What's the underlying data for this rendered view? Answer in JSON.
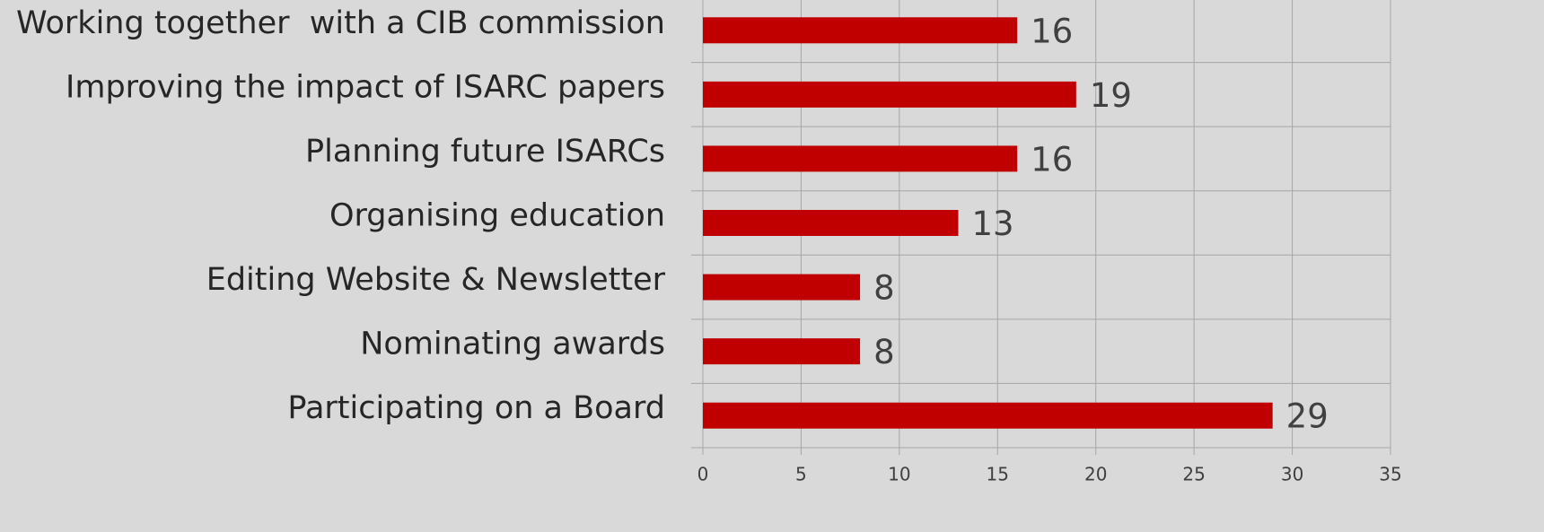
{
  "chart_data": {
    "type": "bar",
    "orientation": "horizontal",
    "categories": [
      "Working together  with a CIB commission",
      "Improving the impact of ISARC papers",
      "Planning future ISARCs",
      "Organising education",
      "Editing Website & Newsletter",
      "Nominating awards",
      "Participating on a Board"
    ],
    "values": [
      16,
      19,
      16,
      13,
      8,
      8,
      29
    ],
    "color": "#c00000",
    "xlim": [
      0,
      35
    ],
    "xticks": [
      0,
      5,
      10,
      15,
      20,
      25,
      30,
      35
    ],
    "grid": true
  }
}
